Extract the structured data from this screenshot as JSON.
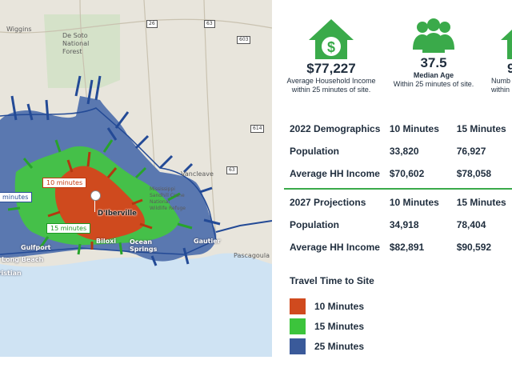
{
  "map": {
    "places": [
      "Wiggins",
      "De Soto National Forest",
      "Vancleave",
      "Mississippi Sandhill Crane National Wildlife Refuge",
      "D'Iberville",
      "Biloxi",
      "Ocean Springs",
      "Gautier",
      "Pascagoula",
      "Gulfport",
      "Long Beach",
      "Christian"
    ],
    "route_shields": [
      "26",
      "63",
      "603",
      "614",
      "63"
    ],
    "tags": {
      "ten": "10 minutes",
      "fifteen": "15 minutes",
      "twentyfive": "minutes"
    },
    "colors": {
      "ten": "#d04a1e",
      "fifteen": "#3cc43c",
      "twentyfive": "#4a6aa8",
      "water": "#cfe3f3",
      "land": "#e8e5dc",
      "forest": "#cfe1c4"
    }
  },
  "stats": [
    {
      "icon": "house-dollar-icon",
      "value": "$77,227",
      "label": "Average Household Income",
      "sub": "within 25 minutes of site."
    },
    {
      "icon": "people-icon",
      "value": "37.5",
      "label": "Median Age",
      "sub": "Within 25 minutes of site."
    },
    {
      "icon": "house-icon",
      "value": "9",
      "label": "Numb",
      "sub": "within"
    }
  ],
  "demographics_2022": {
    "header": [
      "2022 Demographics",
      "10 Minutes",
      "15 Minutes"
    ],
    "rows": [
      [
        "Population",
        "33,820",
        "76,927"
      ],
      [
        "Average HH Income",
        "$70,602",
        "$78,058"
      ]
    ]
  },
  "projections_2027": {
    "header": [
      "2027 Projections",
      "10 Minutes",
      "15 Minutes"
    ],
    "rows": [
      [
        "Population",
        "34,918",
        "78,404"
      ],
      [
        "Average HH Income",
        "$82,891",
        "$90,592"
      ]
    ]
  },
  "legend": {
    "title": "Travel Time to Site",
    "items": [
      {
        "label": "10 Minutes",
        "color": "#d04a1e"
      },
      {
        "label": "15 Minutes",
        "color": "#3cc43c"
      },
      {
        "label": "25 Minutes",
        "color": "#3a5a9a"
      }
    ]
  }
}
